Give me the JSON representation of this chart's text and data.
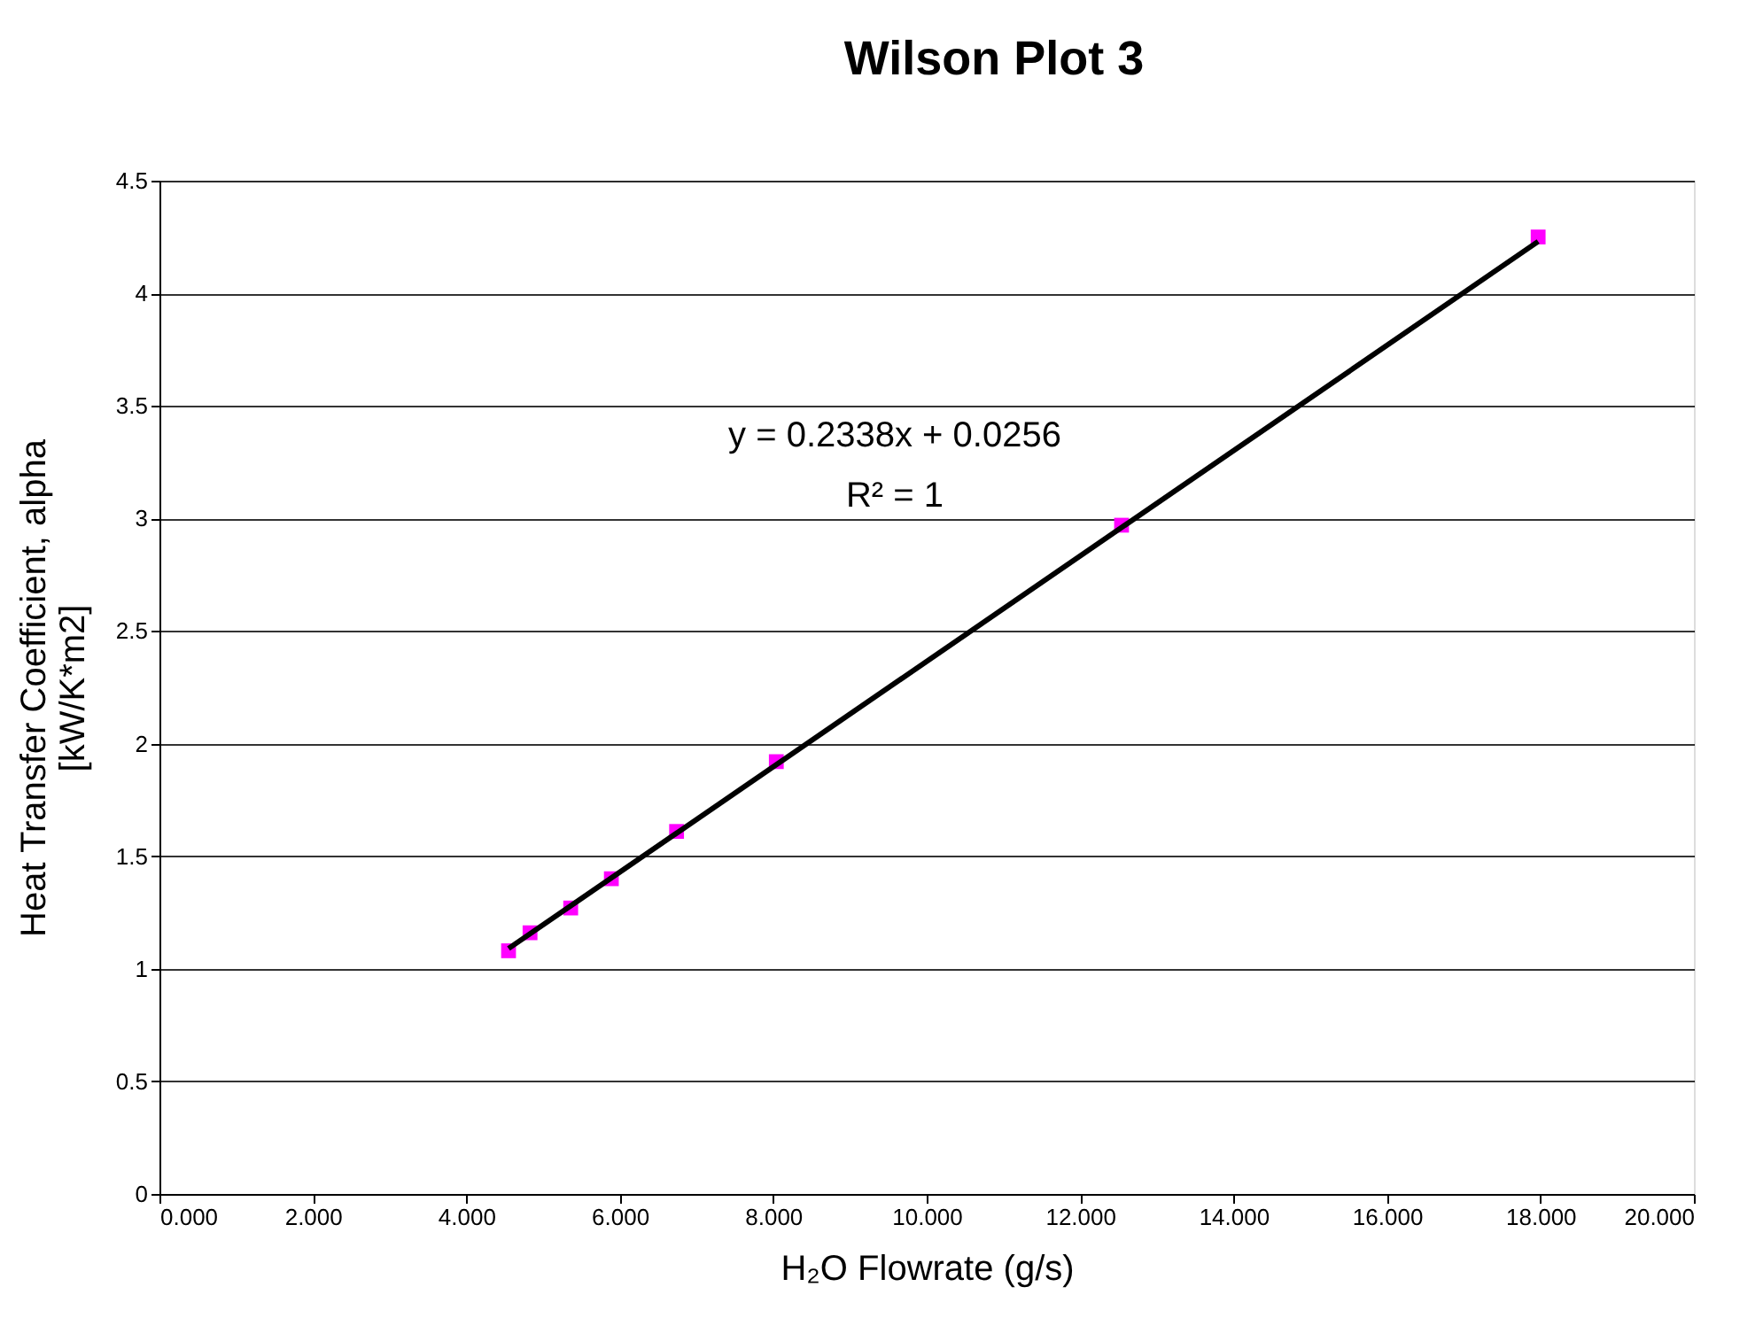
{
  "chart_data": {
    "type": "scatter",
    "title": "Wilson Plot 3",
    "xlabel": "H₂O Flowrate (g/s)",
    "ylabel": "Heat Transfer Coefficient, alpha\n[kW/K*m2]",
    "x": [
      4.55,
      4.83,
      5.36,
      5.89,
      6.74,
      8.04,
      12.54,
      17.97
    ],
    "series": [
      {
        "color": "#ff00ff",
        "marker": "square",
        "values": [
          1.08,
          1.16,
          1.27,
          1.4,
          1.61,
          1.92,
          2.97,
          4.25
        ]
      },
      {
        "type": "line",
        "color": "#000000",
        "line_style": "solid",
        "x": [
          4.55,
          17.97
        ],
        "values": [
          1.09,
          4.23
        ]
      }
    ],
    "xlim": [
      0,
      20
    ],
    "xticks": [
      {
        "value": 0,
        "label": "0.000"
      },
      {
        "value": 2,
        "label": "2.000"
      },
      {
        "value": 4,
        "label": "4.000"
      },
      {
        "value": 6,
        "label": "6.000"
      },
      {
        "value": 8,
        "label": "8.000"
      },
      {
        "value": 10,
        "label": "10.000"
      },
      {
        "value": 12,
        "label": "12.000"
      },
      {
        "value": 14,
        "label": "14.000"
      },
      {
        "value": 16,
        "label": "16.000"
      },
      {
        "value": 18,
        "label": "18.000"
      },
      {
        "value": 20,
        "label": "20.000"
      }
    ],
    "ylim": [
      0,
      4.5
    ],
    "yticks": [
      0,
      0.5,
      1,
      1.5,
      2,
      2.5,
      3,
      3.5,
      4,
      4.5
    ],
    "grid": "y",
    "annotations": [
      "y = 0.2338x + 0.0256",
      "R² = 1"
    ]
  }
}
